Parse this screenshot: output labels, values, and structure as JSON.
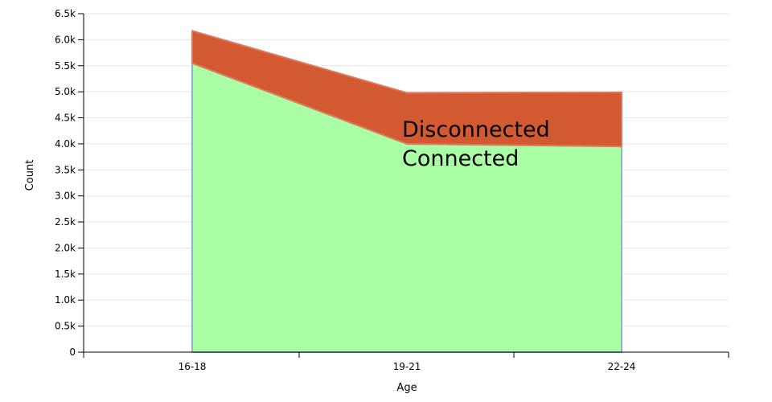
{
  "chart_data": {
    "type": "area",
    "stacked": true,
    "xlabel": "Age",
    "ylabel": "Count",
    "categories": [
      "16-18",
      "19-21",
      "22-24"
    ],
    "ylim": [
      0,
      6500
    ],
    "yticks": [
      "0",
      "0.5k",
      "1.0k",
      "1.5k",
      "2.0k",
      "2.5k",
      "3.0k",
      "3.5k",
      "4.0k",
      "4.5k",
      "5.0k",
      "5.5k",
      "6.0k",
      "6.5k"
    ],
    "grid": true,
    "legend_placement": "center",
    "series": [
      {
        "name": "Connected",
        "values": [
          5550,
          4000,
          3950
        ],
        "color": "#aaffa4"
      },
      {
        "name": "Disconnected",
        "values": [
          620,
          980,
          1040
        ],
        "color": "#d35a30"
      }
    ]
  }
}
